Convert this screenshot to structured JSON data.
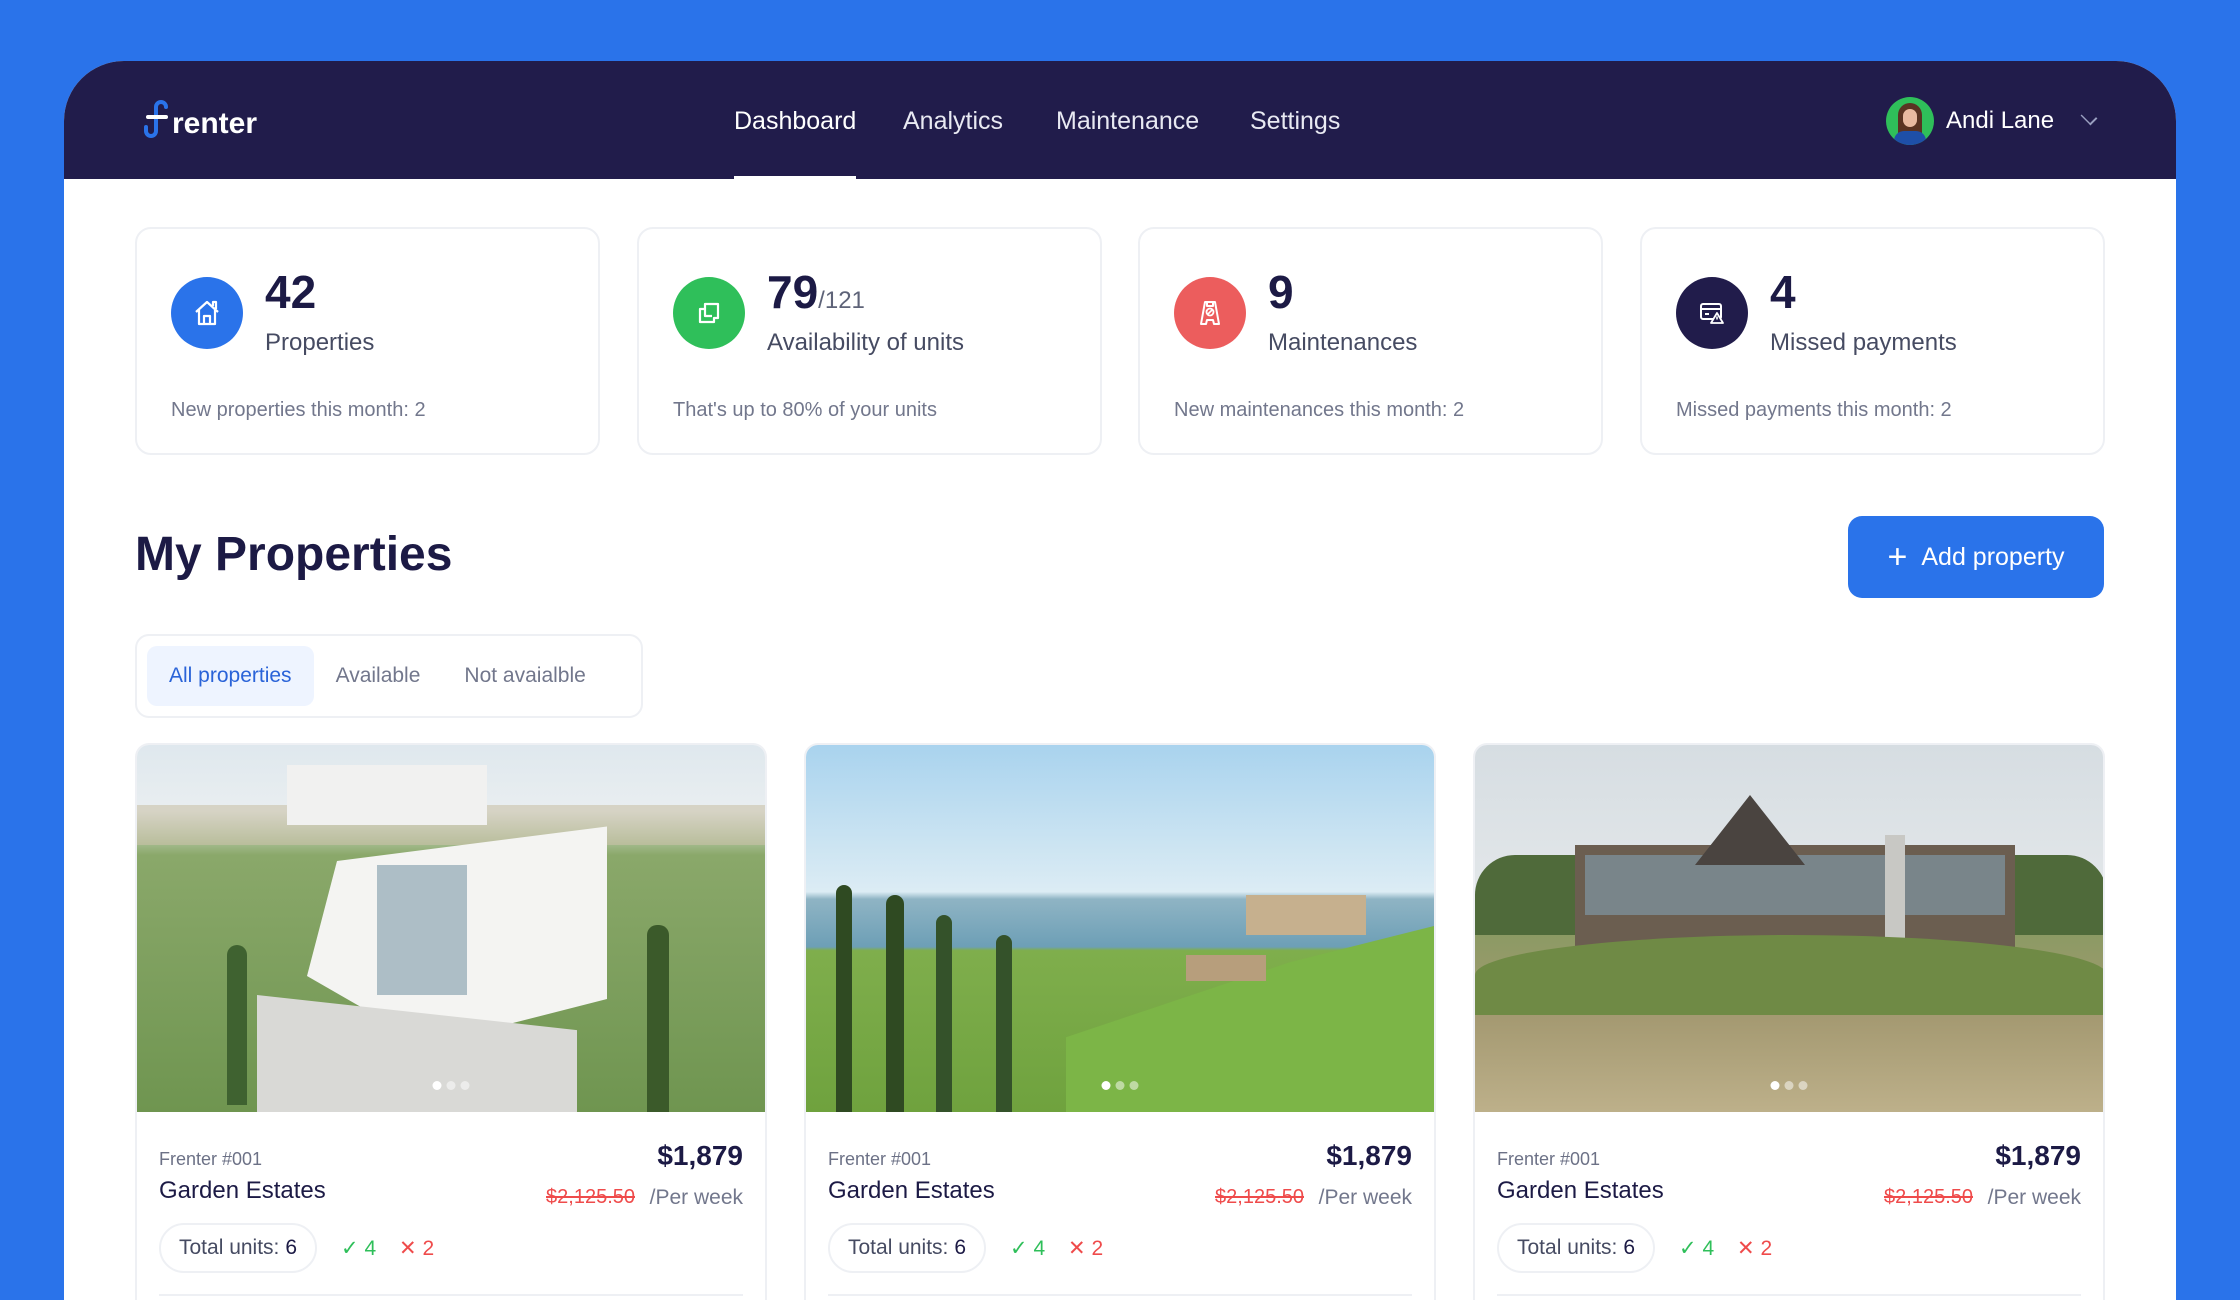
{
  "brand": {
    "name": "renter",
    "accent": "#2a73ea",
    "nav_bg": "#211c4b"
  },
  "nav": {
    "items": [
      {
        "label": "Dashboard",
        "active": true
      },
      {
        "label": "Analytics"
      },
      {
        "label": "Maintenance"
      },
      {
        "label": "Settings"
      }
    ]
  },
  "user": {
    "name": "Andi Lane"
  },
  "stats": [
    {
      "value": "42",
      "total": "",
      "label": "Properties",
      "sub": "New properties this month: 2",
      "icon": "house-icon",
      "color": "#2a73ea"
    },
    {
      "value": "79",
      "total": "/121",
      "label": "Availability of units",
      "sub": "That's up to 80% of your units",
      "icon": "units-icon",
      "color": "#2fbf5a"
    },
    {
      "value": "9",
      "total": "",
      "label": "Maintenances",
      "sub": "New maintenances this month: 2",
      "icon": "wet-floor-sign-icon",
      "color": "#ec5d5d"
    },
    {
      "value": "4",
      "total": "",
      "label": "Missed payments",
      "sub": "Missed payments this month: 2",
      "icon": "card-warning-icon",
      "color": "#211c4b"
    }
  ],
  "section": {
    "title": "My Properties",
    "add_label": "Add property"
  },
  "filters": [
    {
      "label": "All properties",
      "active": true
    },
    {
      "label": "Available"
    },
    {
      "label": "Not avaialble"
    }
  ],
  "properties": [
    {
      "id": "Frenter #001",
      "name": "Garden Estates",
      "price": "$1,879",
      "old_price": "$2,125.50",
      "period": "/Per week",
      "units_label": "Total units:",
      "units": "6",
      "available": "4",
      "unavailable": "2"
    },
    {
      "id": "Frenter #001",
      "name": "Garden Estates",
      "price": "$1,879",
      "old_price": "$2,125.50",
      "period": "/Per week",
      "units_label": "Total units:",
      "units": "6",
      "available": "4",
      "unavailable": "2"
    },
    {
      "id": "Frenter #001",
      "name": "Garden Estates",
      "price": "$1,879",
      "old_price": "$2,125.50",
      "period": "/Per week",
      "units_label": "Total units:",
      "units": "6",
      "available": "4",
      "unavailable": "2"
    }
  ],
  "symbols": {
    "check": "✓",
    "cross": "✕",
    "plus": "+"
  }
}
